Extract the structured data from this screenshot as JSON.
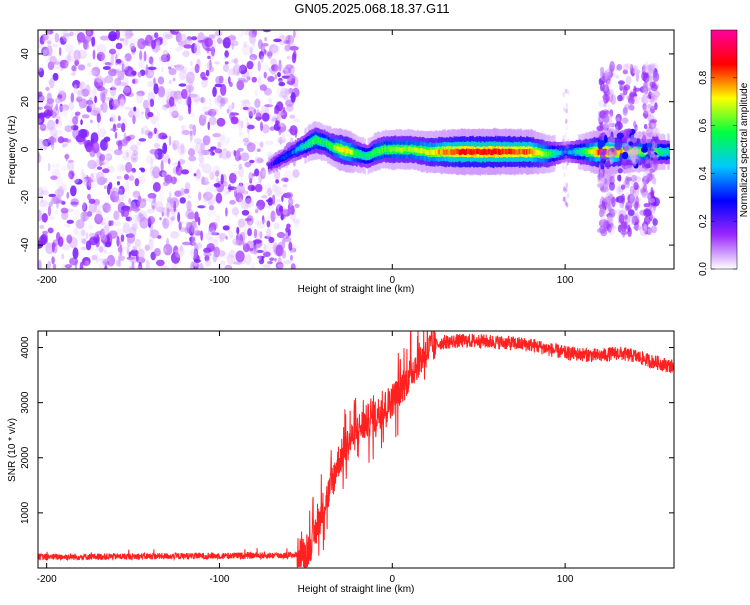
{
  "title": "GN05.2025.068.18.37.G11",
  "chart_data": [
    {
      "type": "heatmap",
      "title": "GN05.2025.068.18.37.G11",
      "xlabel": "Height of straight line (km)",
      "ylabel": "Frequency (Hz)",
      "xlim": [
        -205,
        163
      ],
      "ylim": [
        -50,
        50
      ],
      "xticks": [
        "-200",
        "-100",
        "0",
        "100"
      ],
      "yticks": [
        "-40",
        "-20",
        "0",
        "20",
        "40"
      ],
      "colorbar": {
        "label": "Normalized spectral amplitude",
        "range": [
          0,
          1
        ],
        "ticks": [
          "0.0",
          "0.2",
          "0.4",
          "0.6",
          "0.8"
        ],
        "colors": [
          "#ffffff",
          "#9a28ff",
          "#0000ff",
          "#00c8ff",
          "#00ff40",
          "#ffff00",
          "#ff0000",
          "#ff00a0"
        ]
      },
      "noise_region_km": [
        -205,
        -55
      ],
      "ridge": {
        "x": [
          -72,
          -65,
          -58,
          -50,
          -45,
          -40,
          -35,
          -30,
          -25,
          -20,
          -15,
          -10,
          -5,
          0,
          10,
          20,
          40,
          60,
          80,
          90,
          100,
          110,
          120,
          160
        ],
        "y": [
          -7,
          -4,
          -1,
          2,
          4,
          3,
          1,
          0,
          -1,
          -2,
          -3,
          -1,
          0,
          0,
          0,
          -1,
          -1,
          -1,
          -1,
          -2,
          -1,
          -1,
          -1,
          -1
        ],
        "amplitude": [
          0.2,
          0.3,
          0.35,
          0.5,
          0.6,
          0.55,
          0.6,
          0.75,
          0.7,
          0.55,
          0.5,
          0.6,
          0.6,
          0.65,
          0.65,
          0.7,
          0.85,
          0.85,
          0.8,
          0.6,
          0.35,
          0.55,
          0.85,
          0.5
        ]
      },
      "scatter_regions_km": [
        [
          120,
          128
        ],
        [
          130,
          142
        ],
        [
          145,
          153
        ]
      ]
    },
    {
      "type": "line",
      "xlabel": "Height of straight line (km)",
      "ylabel": "SNR (10 * v/v)",
      "xlim": [
        -205,
        163
      ],
      "ylim": [
        0,
        4300
      ],
      "xticks": [
        "-200",
        "-100",
        "0",
        "100"
      ],
      "yticks": [
        "1000",
        "2000",
        "3000",
        "4000"
      ],
      "color": "#ff2020",
      "series": [
        {
          "x": [
            -205,
            -150,
            -100,
            -60,
            -50,
            -45,
            -40,
            -35,
            -32,
            -28,
            -25,
            -20,
            -15,
            -10,
            -5,
            0,
            5,
            10,
            15,
            20,
            25,
            30,
            40,
            50,
            60,
            80,
            100,
            120,
            130,
            140,
            150,
            163
          ],
          "values": [
            200,
            210,
            220,
            230,
            250,
            600,
            1100,
            1500,
            1900,
            2100,
            2300,
            2500,
            2650,
            2750,
            2900,
            3050,
            3250,
            3500,
            3750,
            3950,
            4050,
            4100,
            4120,
            4120,
            4100,
            4050,
            3900,
            3850,
            3900,
            3850,
            3750,
            3650
          ]
        }
      ]
    }
  ]
}
